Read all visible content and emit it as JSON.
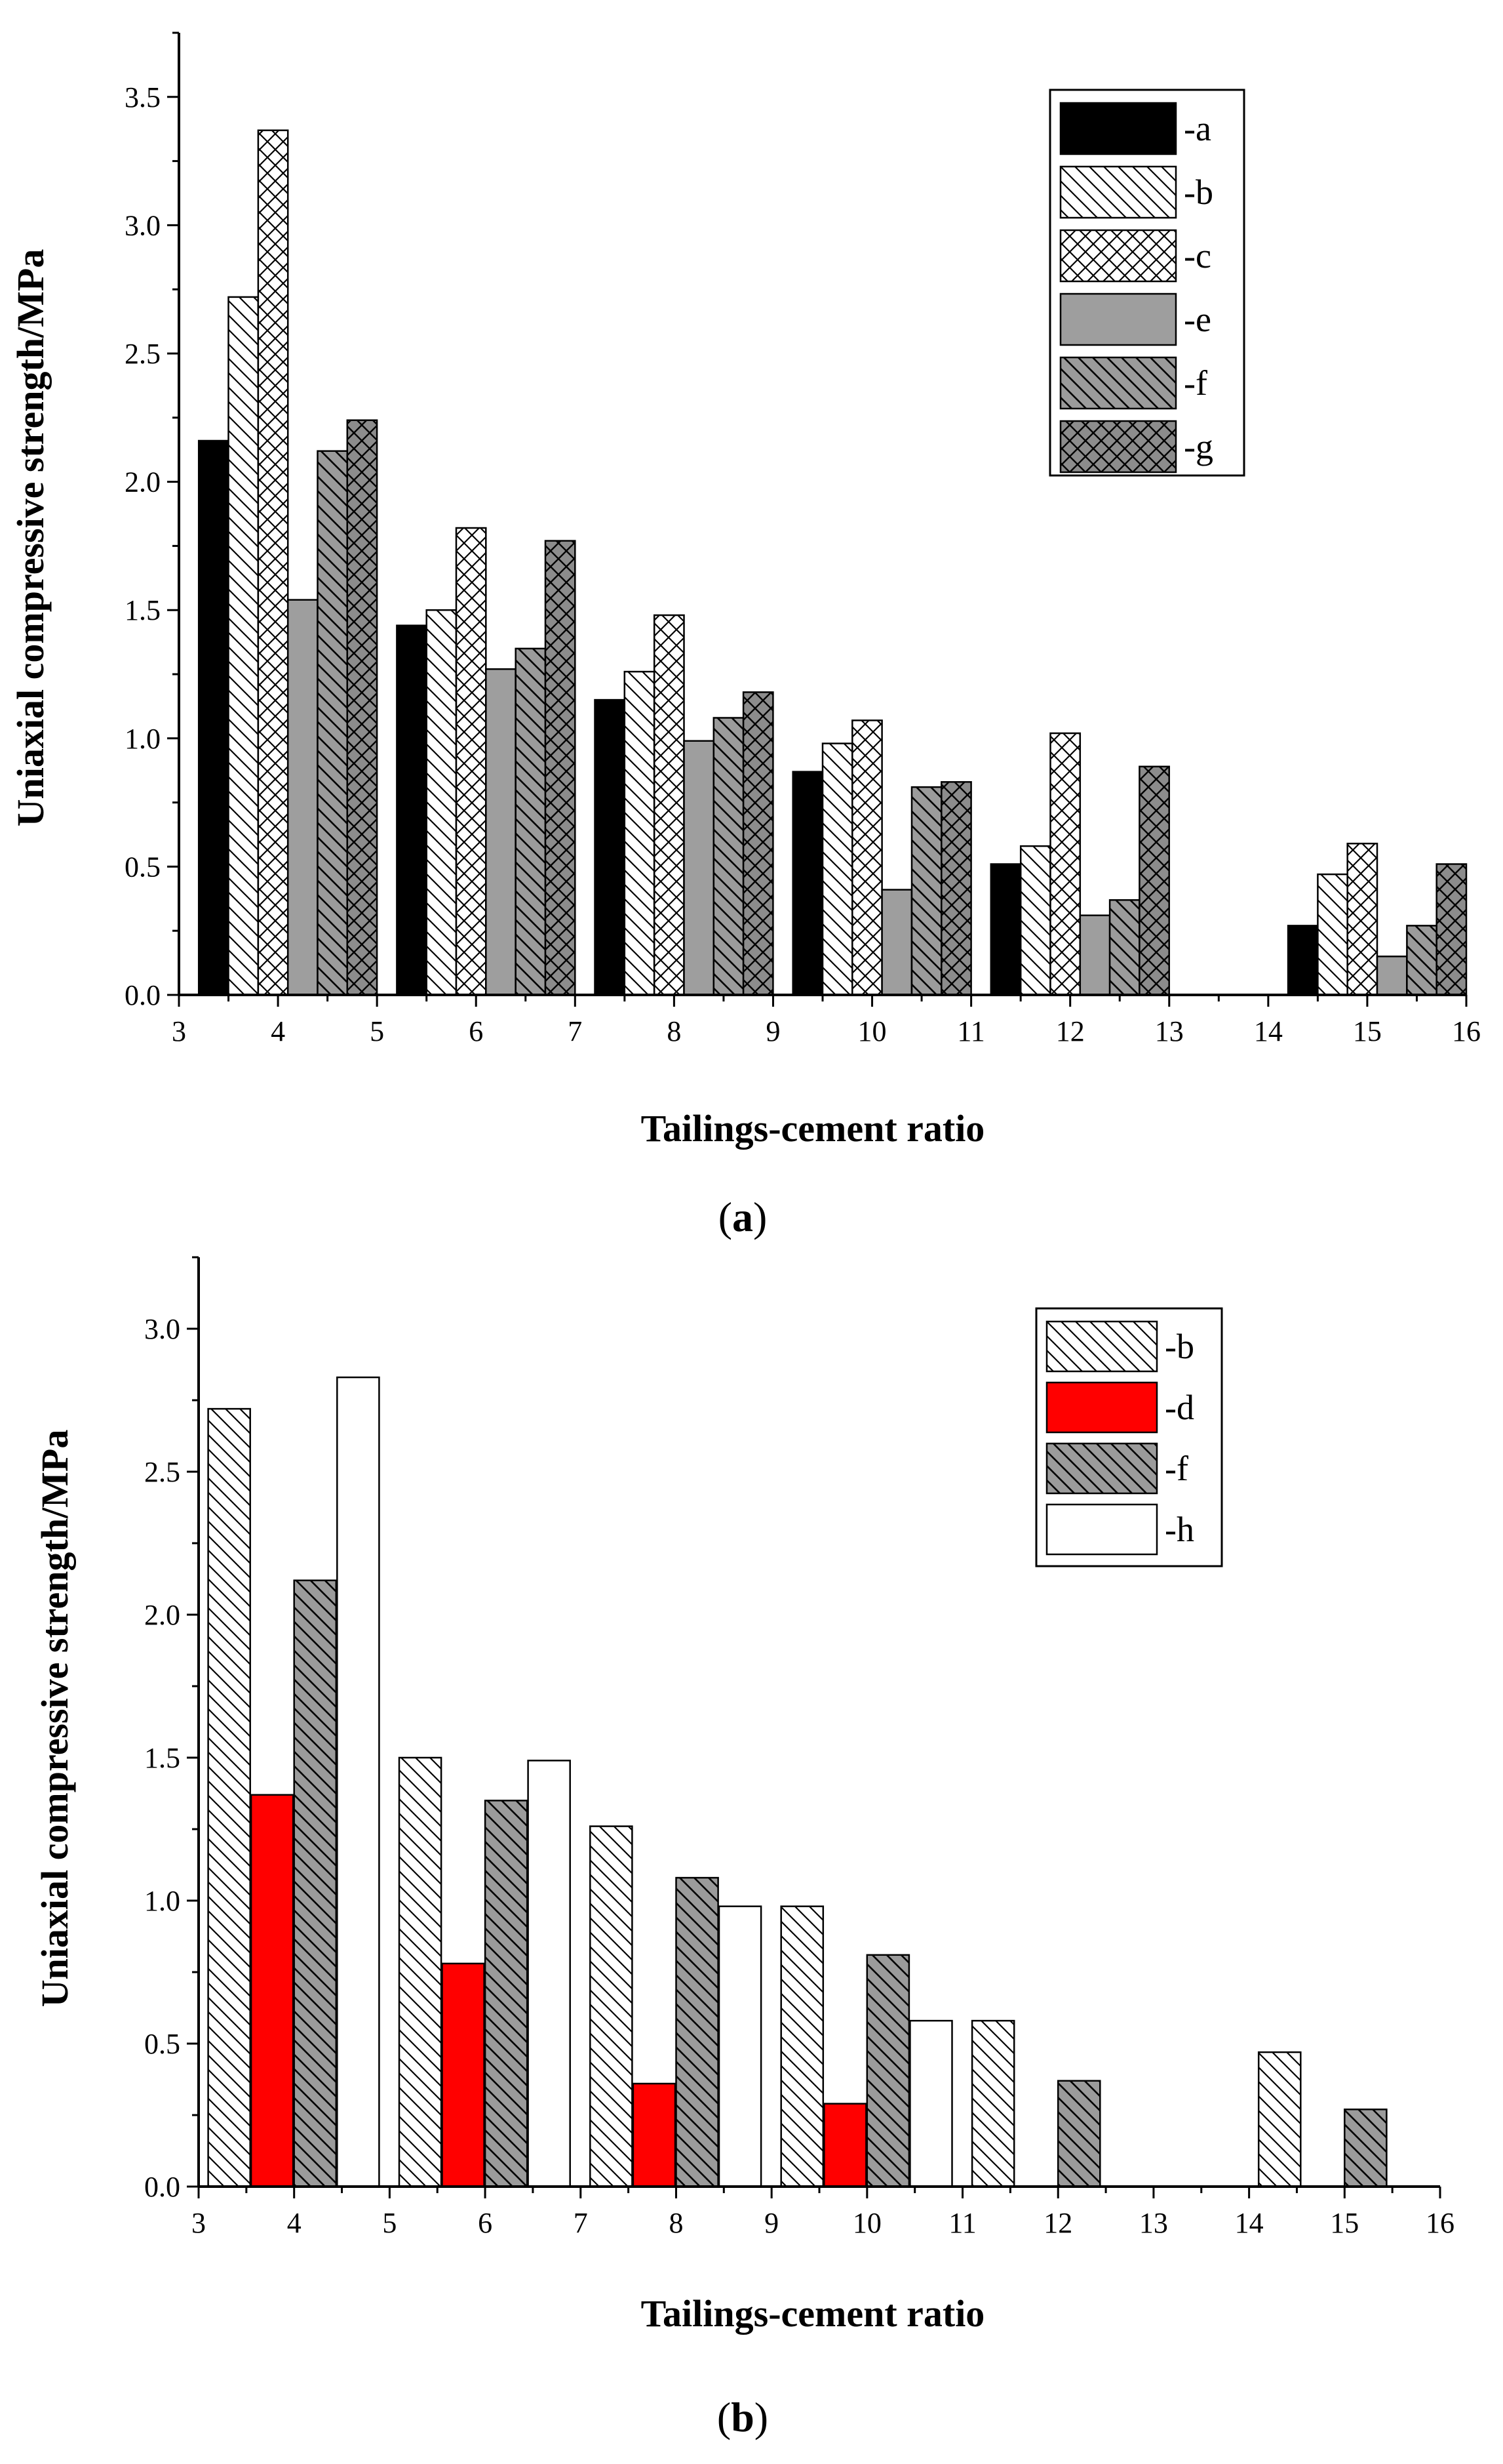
{
  "chart_data": [
    {
      "type": "bar",
      "panel": "a",
      "caption": "(a)",
      "caption_letter": "a",
      "xlabel": "Tailings-cement ratio",
      "ylabel": "Uniaxial compressive strength/MPa",
      "xlim": [
        3,
        16
      ],
      "ylim": [
        0,
        3.75
      ],
      "xticks": [
        "3",
        "4",
        "5",
        "6",
        "7",
        "8",
        "9",
        "10",
        "11",
        "12",
        "13",
        "14",
        "15",
        "16"
      ],
      "yticks": [
        "0.0",
        "0.5",
        "1.0",
        "1.5",
        "2.0",
        "2.5",
        "3.0",
        "3.5"
      ],
      "legend_position": "top-right",
      "categories": [
        "4",
        "6",
        "8",
        "10",
        "12",
        "15"
      ],
      "group_starts": [
        3.2,
        5.2,
        7.2,
        9.2,
        11.2,
        14.2
      ],
      "bar_width": 0.3,
      "series": [
        {
          "name": "-a",
          "style": "black",
          "values": [
            2.16,
            1.44,
            1.15,
            0.87,
            0.51,
            0.27
          ]
        },
        {
          "name": "-b",
          "style": "diag",
          "values": [
            2.72,
            1.5,
            1.26,
            0.98,
            0.58,
            0.47
          ]
        },
        {
          "name": "-c",
          "style": "cross",
          "values": [
            3.37,
            1.82,
            1.48,
            1.07,
            1.02,
            0.59
          ]
        },
        {
          "name": "-e",
          "style": "gray",
          "values": [
            1.54,
            1.27,
            0.99,
            0.41,
            0.31,
            0.15
          ]
        },
        {
          "name": "-f",
          "style": "graydiag",
          "values": [
            2.12,
            1.35,
            1.08,
            0.81,
            0.37,
            0.27
          ]
        },
        {
          "name": "-g",
          "style": "graycross",
          "values": [
            2.24,
            1.77,
            1.18,
            0.83,
            0.89,
            0.51
          ]
        }
      ]
    },
    {
      "type": "bar",
      "panel": "b",
      "caption": "(b)",
      "caption_letter": "b",
      "xlabel": "Tailings-cement ratio",
      "ylabel": "Uniaxial compressive strength/MPa",
      "xlim": [
        3,
        16
      ],
      "ylim": [
        0,
        3.25
      ],
      "xticks": [
        "3",
        "4",
        "5",
        "6",
        "7",
        "8",
        "9",
        "10",
        "11",
        "12",
        "13",
        "14",
        "15",
        "16"
      ],
      "yticks": [
        "0.0",
        "0.5",
        "1.0",
        "1.5",
        "2.0",
        "2.5",
        "3.0"
      ],
      "legend_position": "top-right",
      "categories": [
        "4",
        "6",
        "8",
        "10",
        "12",
        "14",
        "15"
      ],
      "bar_width": 0.44,
      "series": [
        {
          "name": "-b",
          "style": "diag",
          "x": [
            3.1,
            5.1,
            7.1,
            9.1,
            11.1,
            14.1
          ],
          "values": [
            2.72,
            1.5,
            1.26,
            0.98,
            0.58,
            0.47
          ]
        },
        {
          "name": "-d",
          "style": "red",
          "x": [
            3.55,
            5.55,
            7.55,
            9.55
          ],
          "values": [
            1.37,
            0.78,
            0.36,
            0.29
          ]
        },
        {
          "name": "-f",
          "style": "graydiag",
          "x": [
            4.0,
            6.0,
            8.0,
            10.0,
            12.0,
            15.0
          ],
          "values": [
            2.12,
            1.35,
            1.08,
            0.81,
            0.37,
            0.27
          ]
        },
        {
          "name": "-h",
          "style": "white",
          "x": [
            4.45,
            6.45,
            8.45,
            10.45
          ],
          "values": [
            2.83,
            1.49,
            0.98,
            0.58
          ]
        }
      ]
    }
  ]
}
